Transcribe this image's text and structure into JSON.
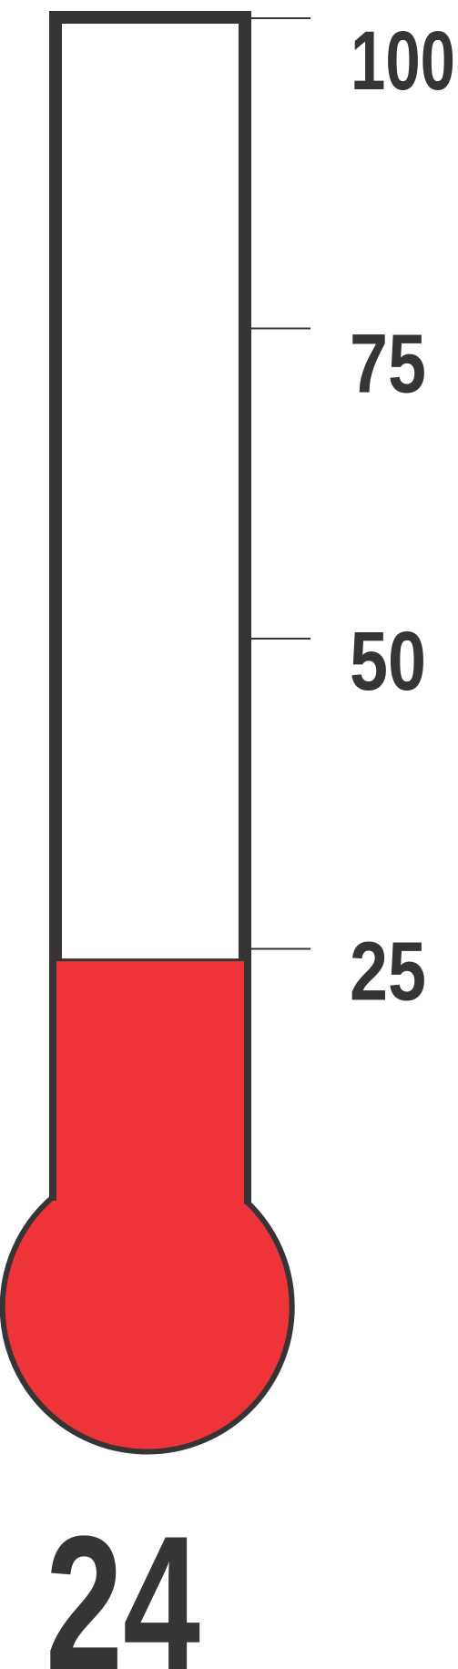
{
  "thermometer": {
    "value": 24,
    "value_label": "24",
    "min": 0,
    "max": 100,
    "ticks": [
      {
        "value": 100,
        "label": "100"
      },
      {
        "value": 75,
        "label": "75"
      },
      {
        "value": 50,
        "label": "50"
      },
      {
        "value": 25,
        "label": "25"
      }
    ],
    "colors": {
      "fill": "#ee3439",
      "outline": "#363435",
      "background": "#ffffff"
    }
  }
}
